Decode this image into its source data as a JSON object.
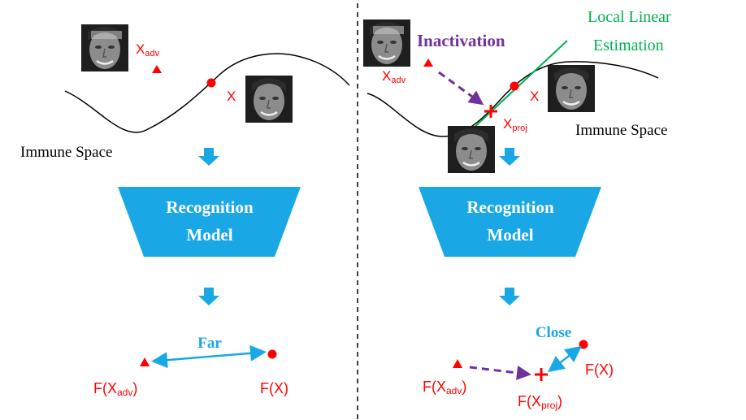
{
  "left": {
    "x_adv": "X",
    "x_adv_sub": "adv",
    "x": "X",
    "space_label": "Immune Space",
    "model_line1": "Recognition",
    "model_line2": "Model",
    "far": "Far",
    "f_x_adv_pre": "F(X",
    "f_x_adv_sub": "adv",
    "f_x_adv_post": ")",
    "f_x": "F(X)"
  },
  "right": {
    "inactivation": "Inactivation",
    "lle_line1": "Local Linear",
    "lle_line2": "Estimation",
    "x_adv": "X",
    "x_adv_sub": "adv",
    "x": "X",
    "x_proj": "X",
    "x_proj_sub": "proj",
    "space_label": "Immune Space",
    "model_line1": "Recognition",
    "model_line2": "Model",
    "close": "Close",
    "f_x_adv_pre": "F(X",
    "f_x_adv_sub": "adv",
    "f_x_adv_post": ")",
    "f_x_proj_pre": "F(X",
    "f_x_proj_sub": "proj",
    "f_x_proj_post": ")",
    "f_x": "F(X)"
  },
  "colors": {
    "accent_blue": "#1aa7e6",
    "red": "#ff0000",
    "purple": "#7030a0",
    "green": "#00b050",
    "curve": "#000000"
  }
}
